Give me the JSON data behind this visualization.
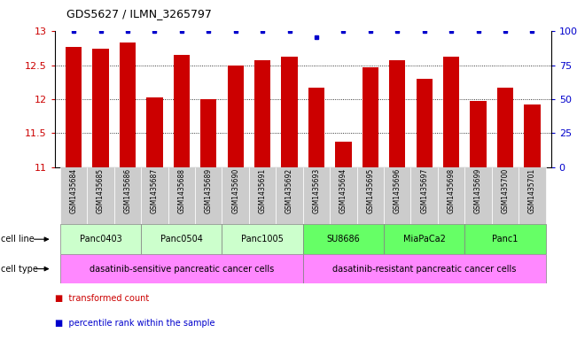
{
  "title": "GDS5627 / ILMN_3265797",
  "samples": [
    "GSM1435684",
    "GSM1435685",
    "GSM1435686",
    "GSM1435687",
    "GSM1435688",
    "GSM1435689",
    "GSM1435690",
    "GSM1435691",
    "GSM1435692",
    "GSM1435693",
    "GSM1435694",
    "GSM1435695",
    "GSM1435696",
    "GSM1435697",
    "GSM1435698",
    "GSM1435699",
    "GSM1435700",
    "GSM1435701"
  ],
  "bar_values": [
    12.77,
    12.74,
    12.84,
    12.02,
    12.65,
    12.0,
    12.5,
    12.58,
    12.62,
    12.17,
    11.38,
    12.47,
    12.57,
    12.3,
    12.62,
    11.98,
    12.17,
    11.92
  ],
  "percentile_values": [
    100,
    100,
    100,
    100,
    100,
    100,
    100,
    100,
    100,
    96,
    100,
    100,
    100,
    100,
    100,
    100,
    100,
    100
  ],
  "bar_color": "#cc0000",
  "percentile_color": "#0000cc",
  "ylim": [
    11.0,
    13.0
  ],
  "yticks": [
    11.0,
    11.5,
    12.0,
    12.5,
    13.0
  ],
  "ytick_labels": [
    "11",
    "11.5",
    "12",
    "12.5",
    "13"
  ],
  "right_ylim": [
    0,
    100
  ],
  "right_yticks": [
    0,
    25,
    50,
    75,
    100
  ],
  "right_ytick_labels": [
    "0",
    "25",
    "50",
    "75",
    "100%"
  ],
  "cell_lines": [
    {
      "label": "Panc0403",
      "start": 0,
      "end": 2,
      "color": "#ccffcc"
    },
    {
      "label": "Panc0504",
      "start": 3,
      "end": 5,
      "color": "#ccffcc"
    },
    {
      "label": "Panc1005",
      "start": 6,
      "end": 8,
      "color": "#ccffcc"
    },
    {
      "label": "SU8686",
      "start": 9,
      "end": 11,
      "color": "#66ff66"
    },
    {
      "label": "MiaPaCa2",
      "start": 12,
      "end": 14,
      "color": "#66ff66"
    },
    {
      "label": "Panc1",
      "start": 15,
      "end": 17,
      "color": "#66ff66"
    }
  ],
  "cell_types": [
    {
      "label": "dasatinib-sensitive pancreatic cancer cells",
      "start": 0,
      "end": 8,
      "color": "#ff88ff"
    },
    {
      "label": "dasatinib-resistant pancreatic cancer cells",
      "start": 9,
      "end": 17,
      "color": "#ff88ff"
    }
  ],
  "background_color": "#ffffff",
  "grid_color": "#000000",
  "ylabel_color": "#cc0000",
  "right_ylabel_color": "#0000cc",
  "xtick_bg_color": "#cccccc"
}
